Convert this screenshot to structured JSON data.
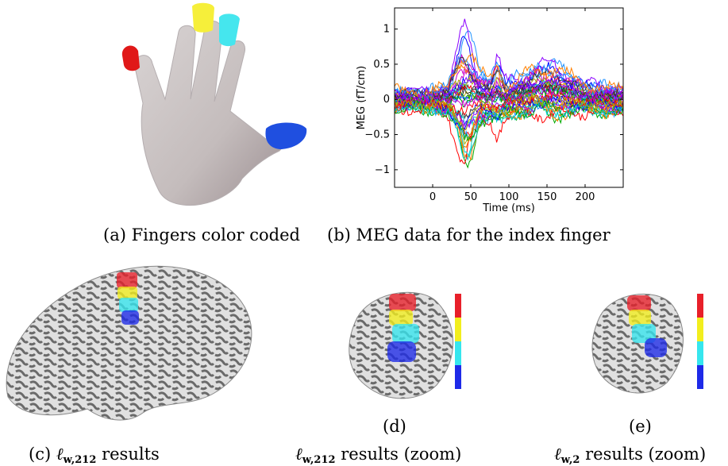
{
  "figure": {
    "captions": {
      "a": "(a) Fingers color coded",
      "b": "(b) MEG data for the index finger",
      "c_prefix": "(c)",
      "c_suffix": "results",
      "d_label": "(d)",
      "d_suffix": "results (zoom)",
      "e_label": "(e)",
      "e_suffix": "results (zoom)"
    },
    "math": {
      "ell": "ℓ",
      "w": "w",
      "sub_212": "w,212",
      "sub_2": "w,2"
    },
    "finger_colors": {
      "thumb": "#1f4fe0",
      "index": "#e01818",
      "middle": "#f6ef3a",
      "ring": "#45e6ee"
    },
    "colorbar": [
      "#e8202a",
      "#f2ee1e",
      "#36e6ee",
      "#1e2ae8"
    ]
  },
  "chart_data": {
    "type": "line",
    "title": "",
    "xlabel": "Time (ms)",
    "ylabel": "MEG (fT/cm)",
    "xlim": [
      -50,
      250
    ],
    "ylim": [
      -1.25,
      1.3
    ],
    "xticks": [
      0,
      50,
      100,
      150,
      200
    ],
    "xtick_labels": [
      "0",
      "50",
      "100",
      "150",
      "200"
    ],
    "yticks": [
      -1,
      -0.5,
      0,
      0.5,
      1
    ],
    "ytick_labels": [
      "−1",
      "−0.5",
      "0",
      "0.5",
      "1"
    ],
    "grid": false,
    "legend": "none",
    "series_count": 40,
    "envelope": {
      "x": [
        -50,
        0,
        20,
        35,
        42,
        50,
        60,
        75,
        85,
        95,
        110,
        140,
        160,
        175,
        200,
        250
      ],
      "max": [
        0.2,
        0.2,
        0.3,
        1.0,
        1.28,
        1.1,
        0.55,
        0.4,
        0.75,
        0.35,
        0.4,
        0.6,
        0.65,
        0.5,
        0.3,
        0.25
      ],
      "min": [
        -0.2,
        -0.2,
        -0.3,
        -0.9,
        -1.22,
        -1.0,
        -0.45,
        -0.4,
        -0.6,
        -0.35,
        -0.3,
        -0.3,
        -0.35,
        -0.3,
        -0.25,
        -0.25
      ]
    }
  }
}
